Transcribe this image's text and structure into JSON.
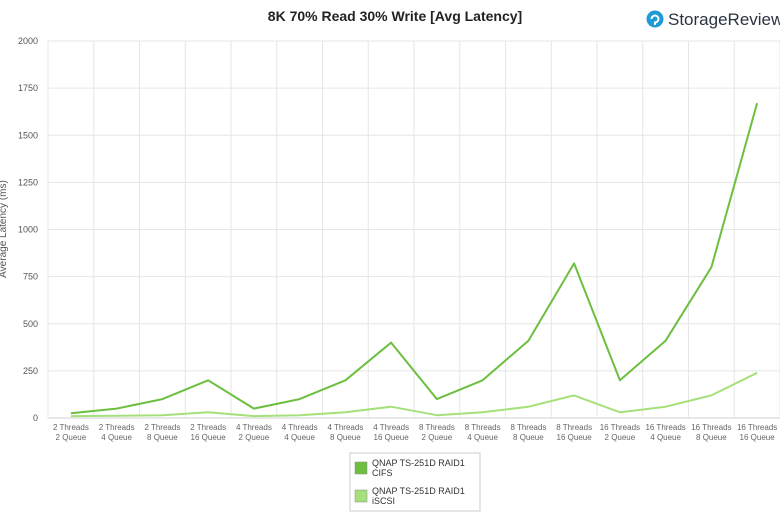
{
  "brand": {
    "name": "StorageReview",
    "icon": "storagereview-logo-icon",
    "color": "#1e9bd7"
  },
  "chart_data": {
    "type": "line",
    "title": "8K 70% Read 30% Write [Avg Latency]",
    "ylabel": "Average Latency (ms)",
    "ylim": [
      0,
      2000
    ],
    "yticks": [
      0,
      250,
      500,
      750,
      1000,
      1250,
      1500,
      1750,
      2000
    ],
    "grid": true,
    "legend_placement": "bottom-center",
    "categories": [
      [
        "2 Threads",
        "2 Queue"
      ],
      [
        "2 Threads",
        "4 Queue"
      ],
      [
        "2 Threads",
        "8 Queue"
      ],
      [
        "2 Threads",
        "16 Queue"
      ],
      [
        "4 Threads",
        "2 Queue"
      ],
      [
        "4 Threads",
        "4 Queue"
      ],
      [
        "4 Threads",
        "8 Queue"
      ],
      [
        "4 Threads",
        "16 Queue"
      ],
      [
        "8 Threads",
        "2 Queue"
      ],
      [
        "8 Threads",
        "4 Queue"
      ],
      [
        "8 Threads",
        "8 Queue"
      ],
      [
        "8 Threads",
        "16 Queue"
      ],
      [
        "16 Threads",
        "2 Queue"
      ],
      [
        "16 Threads",
        "4 Queue"
      ],
      [
        "16 Threads",
        "8 Queue"
      ],
      [
        "16 Threads",
        "16 Queue"
      ]
    ],
    "series": [
      {
        "name": [
          "QNAP TS-251D RAID1",
          "CIFS"
        ],
        "color": "#6cbf3f",
        "values": [
          25,
          50,
          100,
          200,
          50,
          100,
          200,
          400,
          100,
          200,
          410,
          820,
          200,
          410,
          800,
          1670
        ]
      },
      {
        "name": [
          "QNAP TS-251D RAID1",
          "iSCSI"
        ],
        "color": "#a6e07a",
        "values": [
          10,
          12,
          15,
          30,
          10,
          15,
          30,
          60,
          15,
          30,
          60,
          120,
          30,
          60,
          120,
          240
        ]
      }
    ]
  }
}
